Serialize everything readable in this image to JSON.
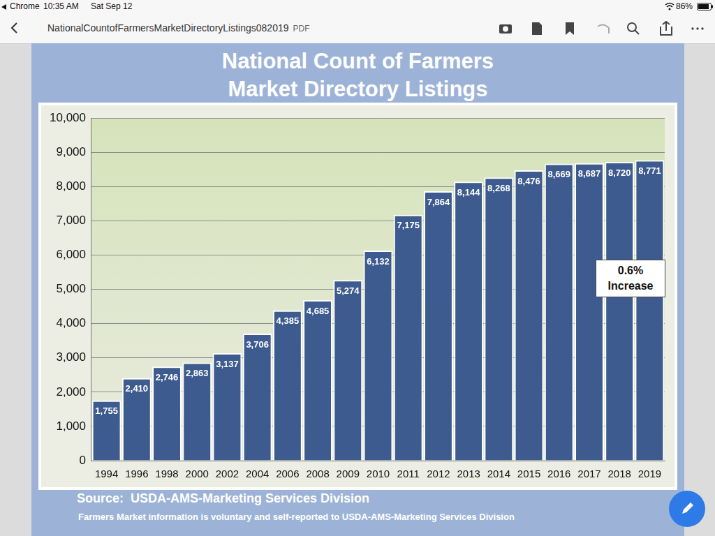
{
  "screen": {
    "status": [
      "Chrome",
      "10:35 AM",
      "Sat Sep 12"
    ],
    "battery": "86%",
    "file_name": "NationalCountofFarmersMarketDirectoryListings082019",
    "file_type": "PDF"
  },
  "chart_data": {
    "type": "bar",
    "title": [
      "National Count of Farmers",
      "Market Directory Listings"
    ],
    "categories": [
      "1994",
      "1996",
      "1998",
      "2000",
      "2002",
      "2004",
      "2006",
      "2008",
      "2009",
      "2010",
      "2011",
      "2012",
      "2013",
      "2014",
      "2015",
      "2016",
      "2017",
      "2018",
      "2019"
    ],
    "values": [
      1755,
      2410,
      2746,
      2863,
      3137,
      3706,
      4385,
      4685,
      5274,
      6132,
      7175,
      7864,
      8144,
      8268,
      8476,
      8669,
      8687,
      8720,
      8771
    ],
    "value_labels": [
      "1,755",
      "2,410",
      "2,746",
      "2,863",
      "3,137",
      "3,706",
      "4,385",
      "4,685",
      "5,274",
      "6,132",
      "7,175",
      "7,864",
      "8,144",
      "8,268",
      "8,476",
      "8,669",
      "8,687",
      "8,720",
      "8,771"
    ],
    "color": "#3e5b8f",
    "ylim": [
      0,
      10000
    ],
    "yticks": [
      0,
      {
        "value": 1000,
        "label": "1,000"
      },
      {
        "value": 2000,
        "label": "2,000"
      },
      {
        "value": 3000,
        "label": "3,000"
      },
      {
        "value": 4000,
        "label": "4,000"
      },
      {
        "value": 5000,
        "label": "5,000"
      },
      {
        "value": 6000,
        "label": "6,000"
      },
      {
        "value": 7000,
        "label": "7,000"
      },
      {
        "value": 8000,
        "label": "8,000"
      },
      {
        "value": 9000,
        "label": "9,000"
      },
      {
        "value": 10000,
        "label": "10,000"
      }
    ],
    "grid": true,
    "data_labels": true,
    "annotation": [
      "0.6%",
      "Increase"
    ],
    "source": "Source:  USDA-AMS-Marketing Services Division",
    "note": "Farmers Market information is voluntary and self-reported to USDA-AMS-Marketing Services Division"
  }
}
